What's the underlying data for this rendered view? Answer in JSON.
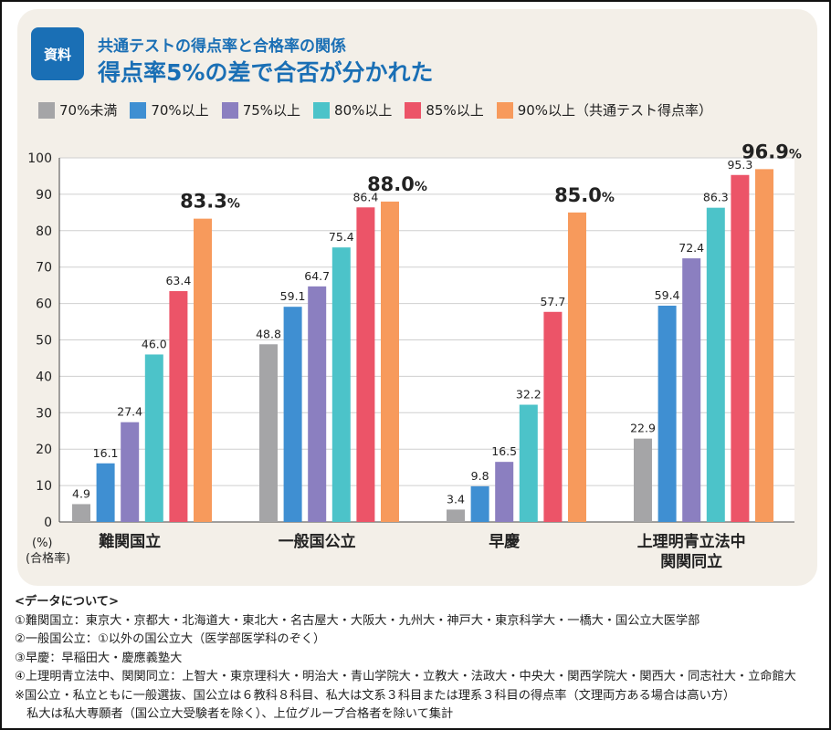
{
  "badge": "資料",
  "title": "共通テストの得点率と合格率の関係",
  "subtitle": "得点率5%の差で合否が分かれた",
  "chart_data": {
    "type": "bar",
    "categories": [
      "難関国立",
      "一般国公立",
      "早慶",
      "上理明青立法中\n関関同立"
    ],
    "series": [
      {
        "name": "70%未満",
        "color": "#a5a5a7",
        "values": [
          4.9,
          48.8,
          3.4,
          22.9
        ]
      },
      {
        "name": "70%以上",
        "color": "#3f8fd2",
        "values": [
          16.1,
          59.1,
          9.8,
          59.4
        ]
      },
      {
        "name": "75%以上",
        "color": "#8b7fc0",
        "values": [
          27.4,
          64.7,
          16.5,
          72.4
        ]
      },
      {
        "name": "80%以上",
        "color": "#4cc3c9",
        "values": [
          46.0,
          75.4,
          32.2,
          86.3
        ]
      },
      {
        "name": "85%以上",
        "color": "#ec5468",
        "values": [
          63.4,
          86.4,
          57.7,
          95.3
        ]
      },
      {
        "name": "90%以上",
        "color": "#f79a5c",
        "values": [
          83.3,
          88.0,
          85.0,
          96.9
        ]
      }
    ],
    "legend_suffix": "（共通テスト得点率）",
    "ylabel_unit": "(%)",
    "ylabel": "(合格率)",
    "ylim": [
      0,
      100
    ],
    "yticks": [
      0,
      10,
      20,
      30,
      40,
      50,
      60,
      70,
      80,
      90,
      100
    ],
    "grid": true,
    "legend": "top",
    "highlight_suffix": "%"
  },
  "notes": {
    "heading": "<データについて>",
    "lines": [
      "①難関国立：東京大・京都大・北海道大・東北大・名古屋大・大阪大・九州大・神戸大・東京科学大・一橋大・国公立大医学部",
      "②一般国公立：①以外の国公立大（医学部医学科のぞく）",
      "③早慶：早稲田大・慶應義塾大",
      "④上理明青立法中、関関同立：上智大・東京理科大・明治大・青山学院大・立教大・法政大・中央大・関西学院大・関西大・同志社大・立命館大",
      "※国公立・私立ともに一般選抜、国公立は６教科８科目、私大は文系３科目または理系３科目の得点率（文理両方ある場合は高い方）",
      "　私大は私大専願者（国公立大受験者を除く）、上位グループ合格者を除いて集計"
    ]
  }
}
